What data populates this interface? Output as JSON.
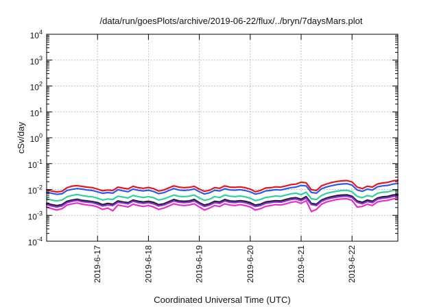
{
  "chart_data": {
    "type": "line",
    "title": "/data/run/goesPlots/archive/2019-06-22/flux/../bryn/7daysMars.plot",
    "xlabel": "Coordinated Universal Time (UTC)",
    "ylabel": "cSv/day",
    "yscale": "log",
    "ylim": [
      0.0001,
      10000
    ],
    "xlim": [
      0,
      6.9
    ],
    "grid": true,
    "y_ticks": [
      {
        "base": "10",
        "exp": "4",
        "value": 10000
      },
      {
        "base": "10",
        "exp": "3",
        "value": 1000
      },
      {
        "base": "10",
        "exp": "2",
        "value": 100
      },
      {
        "base": "10",
        "exp": "1",
        "value": 10
      },
      {
        "base": "10",
        "exp": "0",
        "value": 1
      },
      {
        "base": "10",
        "exp": "-1",
        "value": 0.1
      },
      {
        "base": "10",
        "exp": "-2",
        "value": 0.01
      },
      {
        "base": "10",
        "exp": "-3",
        "value": 0.001
      },
      {
        "base": "10",
        "exp": "-4",
        "value": 0.0001
      }
    ],
    "x_ticks": [
      {
        "label": "2019-6-17",
        "value": 1
      },
      {
        "label": "2019-6-18",
        "value": 2
      },
      {
        "label": "2019-6-19",
        "value": 3
      },
      {
        "label": "2019-6-20",
        "value": 4
      },
      {
        "label": "2019-6-21",
        "value": 5
      },
      {
        "label": "2019-6-22",
        "value": 6
      }
    ],
    "x": [
      0.0,
      0.1,
      0.2,
      0.3,
      0.4,
      0.5,
      0.6,
      0.7,
      0.8,
      0.9,
      1.0,
      1.1,
      1.2,
      1.3,
      1.4,
      1.5,
      1.6,
      1.7,
      1.8,
      1.9,
      2.0,
      2.1,
      2.2,
      2.3,
      2.4,
      2.5,
      2.6,
      2.7,
      2.8,
      2.9,
      3.0,
      3.1,
      3.2,
      3.3,
      3.4,
      3.5,
      3.6,
      3.7,
      3.8,
      3.9,
      4.0,
      4.1,
      4.2,
      4.3,
      4.4,
      4.5,
      4.6,
      4.7,
      4.8,
      4.9,
      5.0,
      5.1,
      5.2,
      5.3,
      5.4,
      5.5,
      5.6,
      5.7,
      5.8,
      5.9,
      6.0,
      6.1,
      6.2,
      6.3,
      6.4,
      6.5,
      6.6,
      6.7,
      6.8,
      6.9
    ],
    "series": [
      {
        "color": "#e8141c",
        "values": [
          0.0099,
          0.0087,
          0.0081,
          0.0085,
          0.0117,
          0.0135,
          0.0141,
          0.0131,
          0.0123,
          0.0118,
          0.0103,
          0.0089,
          0.0095,
          0.0091,
          0.0123,
          0.0113,
          0.0105,
          0.0132,
          0.0117,
          0.0111,
          0.0119,
          0.0108,
          0.0087,
          0.0095,
          0.0115,
          0.0137,
          0.0123,
          0.0118,
          0.0121,
          0.0132,
          0.0103,
          0.0085,
          0.0093,
          0.0118,
          0.0111,
          0.0137,
          0.0123,
          0.0121,
          0.0125,
          0.0117,
          0.0103,
          0.0082,
          0.0092,
          0.0114,
          0.0117,
          0.0126,
          0.0123,
          0.0137,
          0.0154,
          0.0161,
          0.0191,
          0.0181,
          0.0098,
          0.0091,
          0.0138,
          0.0163,
          0.0186,
          0.0204,
          0.0216,
          0.0221,
          0.0196,
          0.0124,
          0.0108,
          0.0133,
          0.0124,
          0.0163,
          0.0179,
          0.0188,
          0.0215,
          0.0228
        ]
      },
      {
        "color": "#2d56f2",
        "values": [
          0.0078,
          0.0071,
          0.0065,
          0.0068,
          0.0092,
          0.0101,
          0.0108,
          0.0103,
          0.0095,
          0.0092,
          0.0081,
          0.0071,
          0.0076,
          0.0072,
          0.0098,
          0.0089,
          0.0082,
          0.0104,
          0.0093,
          0.0088,
          0.0094,
          0.0084,
          0.0069,
          0.0075,
          0.0091,
          0.0108,
          0.0095,
          0.0092,
          0.0095,
          0.0105,
          0.0082,
          0.0067,
          0.0074,
          0.0093,
          0.0088,
          0.0106,
          0.0096,
          0.0094,
          0.0098,
          0.0091,
          0.0081,
          0.0066,
          0.0073,
          0.0088,
          0.0092,
          0.0098,
          0.0095,
          0.0106,
          0.0118,
          0.0124,
          0.0143,
          0.0137,
          0.0077,
          0.0072,
          0.0106,
          0.0125,
          0.0141,
          0.0154,
          0.0163,
          0.0167,
          0.0148,
          0.0096,
          0.0085,
          0.0103,
          0.0095,
          0.0126,
          0.0138,
          0.0143,
          0.0161,
          0.0171
        ]
      },
      {
        "color": "#2ecfa0",
        "values": [
          0.0044,
          0.0039,
          0.0036,
          0.0039,
          0.0052,
          0.0059,
          0.0064,
          0.0058,
          0.0054,
          0.0052,
          0.0046,
          0.0039,
          0.0043,
          0.0041,
          0.0055,
          0.0051,
          0.0047,
          0.0059,
          0.0053,
          0.0049,
          0.0053,
          0.0048,
          0.0039,
          0.0043,
          0.0051,
          0.0061,
          0.0054,
          0.0053,
          0.0055,
          0.0061,
          0.0047,
          0.0038,
          0.0042,
          0.0053,
          0.0049,
          0.0061,
          0.0055,
          0.0053,
          0.0056,
          0.0052,
          0.0046,
          0.0037,
          0.0041,
          0.0049,
          0.0052,
          0.0056,
          0.0054,
          0.0061,
          0.0068,
          0.0072,
          0.0063,
          0.0079,
          0.0044,
          0.0041,
          0.0059,
          0.0071,
          0.0079,
          0.0086,
          0.0091,
          0.0093,
          0.0082,
          0.0054,
          0.0048,
          0.0058,
          0.0053,
          0.0071,
          0.0078,
          0.0081,
          0.0091,
          0.0096
        ]
      },
      {
        "color": "#222222",
        "values": [
          0.0029,
          0.0026,
          0.0024,
          0.0026,
          0.0035,
          0.0039,
          0.0042,
          0.0038,
          0.0036,
          0.0034,
          0.0031,
          0.0026,
          0.0029,
          0.0027,
          0.0036,
          0.0033,
          0.0031,
          0.0039,
          0.0035,
          0.0033,
          0.0035,
          0.0032,
          0.0026,
          0.0028,
          0.0034,
          0.0041,
          0.0036,
          0.0035,
          0.0036,
          0.0041,
          0.0031,
          0.0025,
          0.0028,
          0.0035,
          0.0033,
          0.0041,
          0.0036,
          0.0035,
          0.0037,
          0.0035,
          0.0031,
          0.0025,
          0.0027,
          0.0033,
          0.0035,
          0.0037,
          0.0036,
          0.0041,
          0.0046,
          0.0048,
          0.0042,
          0.0053,
          0.0029,
          0.0027,
          0.0039,
          0.0047,
          0.0053,
          0.0058,
          0.0061,
          0.0062,
          0.0055,
          0.0036,
          0.0032,
          0.0039,
          0.0035,
          0.0047,
          0.0052,
          0.0054,
          0.0061,
          0.0064
        ]
      },
      {
        "color": "#8a2be2",
        "values": [
          0.0026,
          0.0023,
          0.0021,
          0.0023,
          0.0031,
          0.0035,
          0.0038,
          0.0034,
          0.0032,
          0.0031,
          0.0027,
          0.0023,
          0.0025,
          0.0024,
          0.0032,
          0.003,
          0.0028,
          0.0035,
          0.0031,
          0.0029,
          0.0031,
          0.0028,
          0.0023,
          0.0025,
          0.003,
          0.0036,
          0.0032,
          0.0031,
          0.0032,
          0.0036,
          0.0028,
          0.0022,
          0.0025,
          0.0031,
          0.0029,
          0.0036,
          0.0032,
          0.0031,
          0.0033,
          0.0031,
          0.0027,
          0.0022,
          0.0024,
          0.0029,
          0.0031,
          0.0033,
          0.0032,
          0.0036,
          0.0041,
          0.0043,
          0.0037,
          0.0047,
          0.0026,
          0.0024,
          0.0035,
          0.0042,
          0.0047,
          0.0051,
          0.0054,
          0.0055,
          0.0049,
          0.0032,
          0.0028,
          0.0034,
          0.0031,
          0.0042,
          0.0046,
          0.0048,
          0.0054,
          0.0057
        ]
      },
      {
        "color": "#f02cc8",
        "values": [
          0.0021,
          0.0018,
          0.0016,
          0.0018,
          0.0025,
          0.0028,
          0.003,
          0.0027,
          0.0025,
          0.0024,
          0.0021,
          0.0017,
          0.0019,
          0.0015,
          0.0025,
          0.0023,
          0.0021,
          0.0027,
          0.0024,
          0.0022,
          0.0024,
          0.0021,
          0.0017,
          0.0019,
          0.0023,
          0.0028,
          0.0025,
          0.0024,
          0.0025,
          0.0028,
          0.0021,
          0.0016,
          0.0019,
          0.0024,
          0.0022,
          0.0028,
          0.0025,
          0.0024,
          0.0026,
          0.0024,
          0.0021,
          0.0016,
          0.0018,
          0.0022,
          0.0024,
          0.0026,
          0.0025,
          0.0028,
          0.0032,
          0.0034,
          0.0029,
          0.0037,
          0.0014,
          0.0017,
          0.0027,
          0.0033,
          0.0037,
          0.0041,
          0.0043,
          0.0044,
          0.0038,
          0.0021,
          0.0022,
          0.0027,
          0.0024,
          0.0033,
          0.0036,
          0.0038,
          0.0043,
          0.0045
        ]
      }
    ]
  }
}
